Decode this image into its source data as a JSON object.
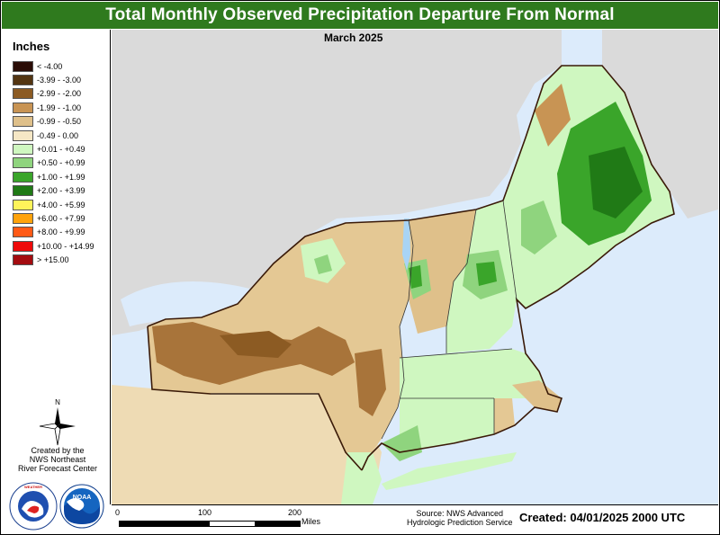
{
  "title": "Total Monthly Observed Precipitation Departure From Normal",
  "subtitle": "March 2025",
  "legend": {
    "title": "Inches",
    "items": [
      {
        "label": "< -4.00",
        "color": "#2a0c06"
      },
      {
        "label": "-3.99 - -3.00",
        "color": "#533512"
      },
      {
        "label": "-2.99 - -2.00",
        "color": "#8c5b23"
      },
      {
        "label": "-1.99 - -1.00",
        "color": "#c89454"
      },
      {
        "label": "-0.99 - -0.50",
        "color": "#dfc08a"
      },
      {
        "label": "-0.49 - 0.00",
        "color": "#f6e7c5"
      },
      {
        "label": "+0.01 - +0.49",
        "color": "#cff7c0"
      },
      {
        "label": "+0.50 - +0.99",
        "color": "#8fd47e"
      },
      {
        "label": "+1.00 - +1.99",
        "color": "#3aa52a"
      },
      {
        "label": "+2.00 - +3.99",
        "color": "#207a16"
      },
      {
        "label": "+4.00 - +5.99",
        "color": "#fff45a"
      },
      {
        "label": "+6.00 - +7.99",
        "color": "#ffa30c"
      },
      {
        "label": "+8.00 - +9.99",
        "color": "#ff5a16"
      },
      {
        "label": "+10.00 - +14.99",
        "color": "#ee0a0a"
      },
      {
        "label": "> +15.00",
        "color": "#a40c10"
      }
    ]
  },
  "north_label": "N",
  "credit": [
    "Created by the",
    "NWS Northeast",
    "River Forecast Center"
  ],
  "logos": {
    "nws": "NATIONAL WEATHER SERVICE",
    "noaa": "NOAA"
  },
  "scale": {
    "ticks": [
      "0",
      "100",
      "200"
    ],
    "unit": "Miles"
  },
  "source": [
    "Source: NWS Advanced",
    "Hydrologic Prediction Service"
  ],
  "created": "Created: 04/01/2025 2000 UTC",
  "colors": {
    "title_bar": "#2f7a1e",
    "water": "#dcebfb",
    "outside": "#dadada"
  }
}
